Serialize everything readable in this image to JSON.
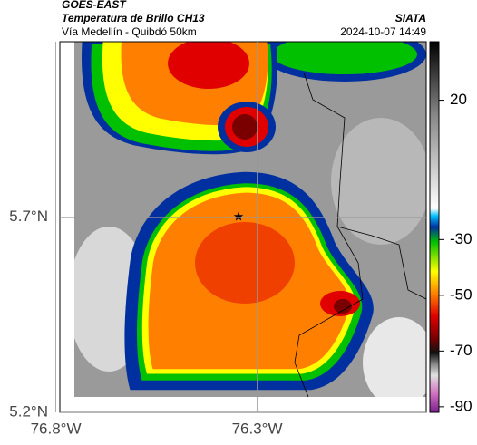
{
  "header": {
    "satellite": "GOES-EAST",
    "product": "Temperatura de Brillo CH13",
    "region": "Vía Medellín - Quibdó 50km",
    "source": "SIATA",
    "timestamp": "2024-10-07 14:49"
  },
  "map": {
    "xlim": [
      -76.79,
      -75.88
    ],
    "ylim": [
      5.2,
      6.15
    ],
    "xticks": [
      {
        "value": -76.8,
        "label": "76.8°W"
      },
      {
        "value": -76.3,
        "label": "76.3°W"
      }
    ],
    "yticks": [
      {
        "value": 5.7,
        "label": "5.7°N"
      },
      {
        "value": 5.2,
        "label": "5.2°N"
      }
    ],
    "grid": true
  },
  "colorbar": {
    "lim": [
      -92,
      41
    ],
    "ticks": [
      20,
      -30,
      -50,
      -70,
      -90
    ]
  }
}
